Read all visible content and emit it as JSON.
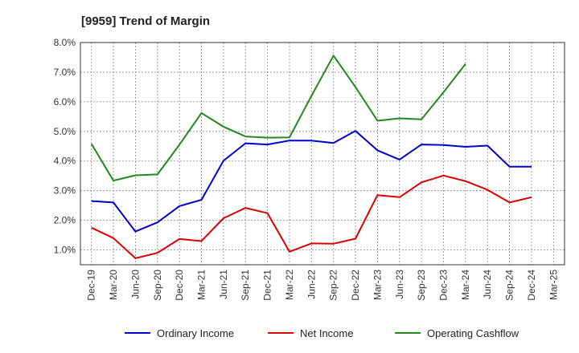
{
  "chart_data": {
    "type": "line",
    "title": "[9959]  Trend of Margin",
    "xlabel": "",
    "ylabel": "",
    "categories": [
      "Dec-19",
      "Mar-20",
      "Jun-20",
      "Sep-20",
      "Dec-20",
      "Mar-21",
      "Jun-21",
      "Sep-21",
      "Dec-21",
      "Mar-22",
      "Jun-22",
      "Sep-22",
      "Dec-22",
      "Mar-23",
      "Jun-23",
      "Sep-23",
      "Dec-23",
      "Mar-24",
      "Jun-24",
      "Sep-24",
      "Dec-24",
      "Mar-25"
    ],
    "ylim": [
      0.5,
      8.0
    ],
    "yticks": [
      1.0,
      2.0,
      3.0,
      4.0,
      5.0,
      6.0,
      7.0,
      8.0
    ],
    "ytick_labels": [
      "1.0%",
      "2.0%",
      "3.0%",
      "4.0%",
      "5.0%",
      "6.0%",
      "7.0%",
      "8.0%"
    ],
    "grid": true,
    "legend_position": "bottom",
    "series": [
      {
        "name": "Ordinary Income",
        "color": "#0000cc",
        "values": [
          2.65,
          2.6,
          1.62,
          1.93,
          2.48,
          2.69,
          4.01,
          4.6,
          4.56,
          4.69,
          4.69,
          4.61,
          5.02,
          4.36,
          4.05,
          4.56,
          4.54,
          4.48,
          4.52,
          3.81,
          3.81,
          null
        ]
      },
      {
        "name": "Net Income",
        "color": "#dd0000",
        "values": [
          1.75,
          1.4,
          0.72,
          0.9,
          1.37,
          1.3,
          2.07,
          2.42,
          2.24,
          0.94,
          1.22,
          1.21,
          1.38,
          2.85,
          2.78,
          3.28,
          3.51,
          3.32,
          3.03,
          2.6,
          2.78,
          null
        ]
      },
      {
        "name": "Operating Cashflow",
        "color": "#228822",
        "values": [
          4.58,
          3.34,
          3.52,
          3.55,
          4.55,
          5.62,
          5.16,
          4.83,
          4.79,
          4.8,
          6.2,
          7.56,
          6.5,
          5.36,
          5.44,
          5.41,
          6.32,
          7.28,
          null,
          null,
          null,
          null
        ]
      }
    ]
  }
}
